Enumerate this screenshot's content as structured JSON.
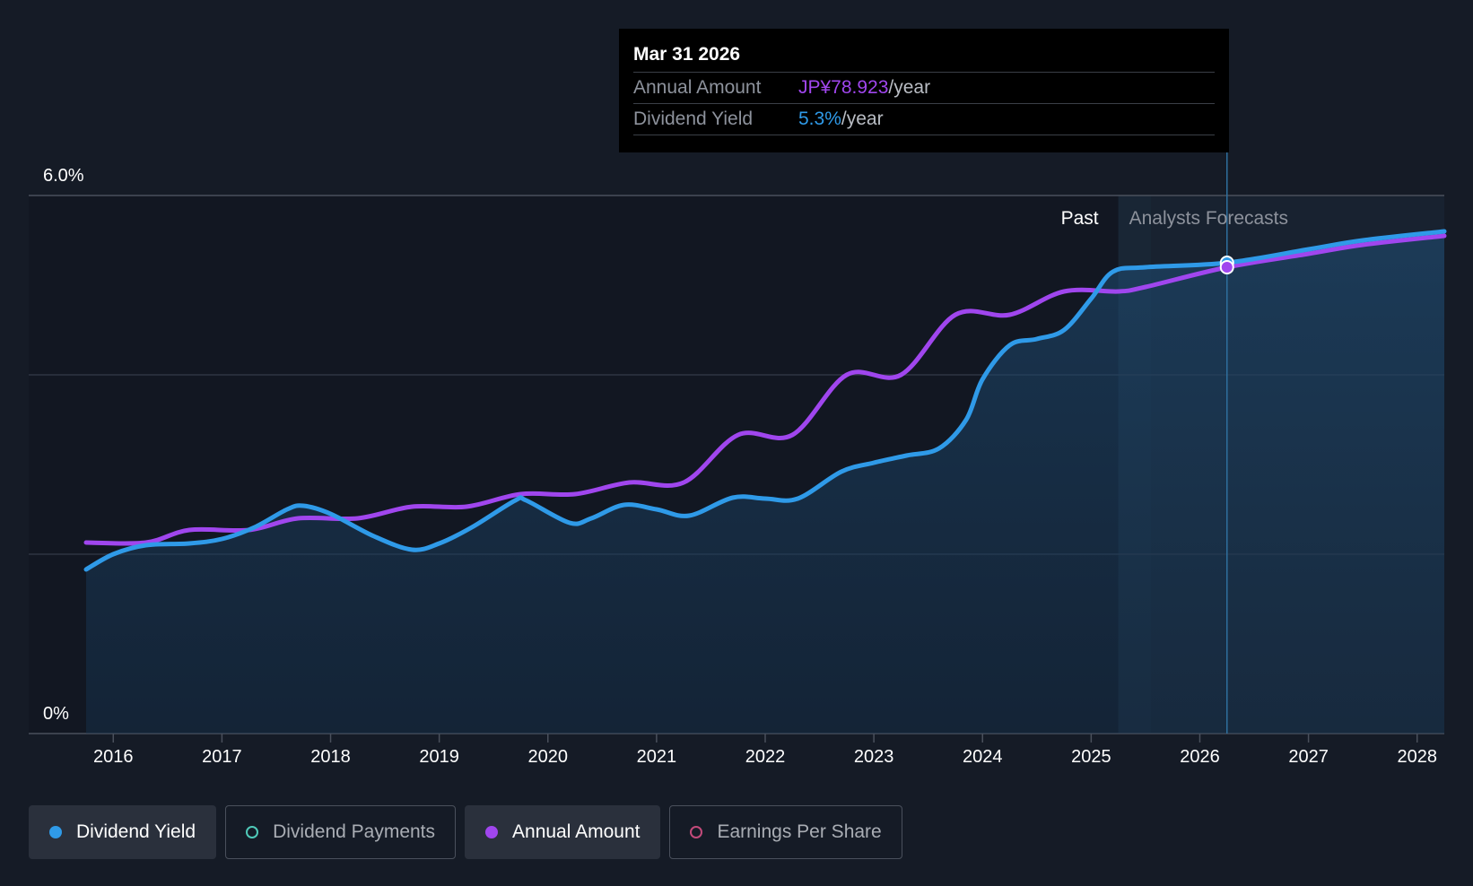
{
  "tooltip": {
    "date": "Mar 31 2026",
    "annual_label": "Annual Amount",
    "annual_value": "JP¥78.923",
    "annual_unit": "/year",
    "yield_label": "Dividend Yield",
    "yield_value": "5.3%",
    "yield_unit": "/year"
  },
  "regions": {
    "past": "Past",
    "forecast": "Analysts Forecasts"
  },
  "legend": [
    {
      "label": "Dividend Yield",
      "color": "#2f9ae8",
      "active": true,
      "filled": true
    },
    {
      "label": "Dividend Payments",
      "color": "#4fc9b8",
      "active": false,
      "filled": false
    },
    {
      "label": "Annual Amount",
      "color": "#a046ee",
      "active": true,
      "filled": true
    },
    {
      "label": "Earnings Per Share",
      "color": "#c24a7a",
      "active": false,
      "filled": false
    }
  ],
  "chart_data": {
    "type": "line",
    "y_tick_labels": [
      "6.0%",
      "0%"
    ],
    "ylim": [
      0,
      6.0
    ],
    "xlim": [
      2015.75,
      2028.25
    ],
    "x_ticks": [
      2016,
      2017,
      2018,
      2019,
      2020,
      2021,
      2022,
      2023,
      2024,
      2025,
      2026,
      2027,
      2028
    ],
    "grid": true,
    "forecast_start": 2025.25,
    "series": [
      {
        "name": "Dividend Yield",
        "color": "#2f9ae8",
        "fill": true,
        "points": [
          [
            2015.75,
            1.83
          ],
          [
            2016.0,
            2.0
          ],
          [
            2016.3,
            2.1
          ],
          [
            2016.7,
            2.12
          ],
          [
            2017.0,
            2.17
          ],
          [
            2017.3,
            2.3
          ],
          [
            2017.6,
            2.5
          ],
          [
            2017.75,
            2.54
          ],
          [
            2018.0,
            2.45
          ],
          [
            2018.4,
            2.2
          ],
          [
            2018.75,
            2.05
          ],
          [
            2019.0,
            2.12
          ],
          [
            2019.3,
            2.3
          ],
          [
            2019.7,
            2.6
          ],
          [
            2019.8,
            2.6
          ],
          [
            2020.2,
            2.35
          ],
          [
            2020.4,
            2.4
          ],
          [
            2020.7,
            2.55
          ],
          [
            2021.0,
            2.5
          ],
          [
            2021.3,
            2.43
          ],
          [
            2021.7,
            2.63
          ],
          [
            2022.0,
            2.62
          ],
          [
            2022.3,
            2.62
          ],
          [
            2022.7,
            2.92
          ],
          [
            2023.0,
            3.02
          ],
          [
            2023.3,
            3.1
          ],
          [
            2023.6,
            3.18
          ],
          [
            2023.85,
            3.5
          ],
          [
            2024.0,
            3.95
          ],
          [
            2024.25,
            4.33
          ],
          [
            2024.5,
            4.4
          ],
          [
            2024.75,
            4.5
          ],
          [
            2025.0,
            4.85
          ],
          [
            2025.2,
            5.15
          ],
          [
            2025.5,
            5.2
          ],
          [
            2026.25,
            5.25
          ],
          [
            2027.0,
            5.4
          ],
          [
            2027.5,
            5.5
          ],
          [
            2028.25,
            5.6
          ]
        ]
      },
      {
        "name": "Annual Amount",
        "color": "#a046ee",
        "fill": false,
        "points": [
          [
            2015.75,
            2.13
          ],
          [
            2016.3,
            2.13
          ],
          [
            2016.7,
            2.27
          ],
          [
            2017.25,
            2.27
          ],
          [
            2017.7,
            2.4
          ],
          [
            2018.25,
            2.4
          ],
          [
            2018.75,
            2.53
          ],
          [
            2019.25,
            2.53
          ],
          [
            2019.75,
            2.67
          ],
          [
            2020.25,
            2.67
          ],
          [
            2020.75,
            2.8
          ],
          [
            2021.25,
            2.8
          ],
          [
            2021.75,
            3.33
          ],
          [
            2022.25,
            3.33
          ],
          [
            2022.75,
            4.0
          ],
          [
            2023.25,
            4.0
          ],
          [
            2023.75,
            4.67
          ],
          [
            2024.25,
            4.67
          ],
          [
            2024.75,
            4.93
          ],
          [
            2025.25,
            4.93
          ],
          [
            2025.5,
            4.98
          ],
          [
            2026.25,
            5.2
          ],
          [
            2027.0,
            5.35
          ],
          [
            2027.5,
            5.45
          ],
          [
            2028.25,
            5.55
          ]
        ]
      }
    ],
    "highlight_x": 2026.25
  }
}
